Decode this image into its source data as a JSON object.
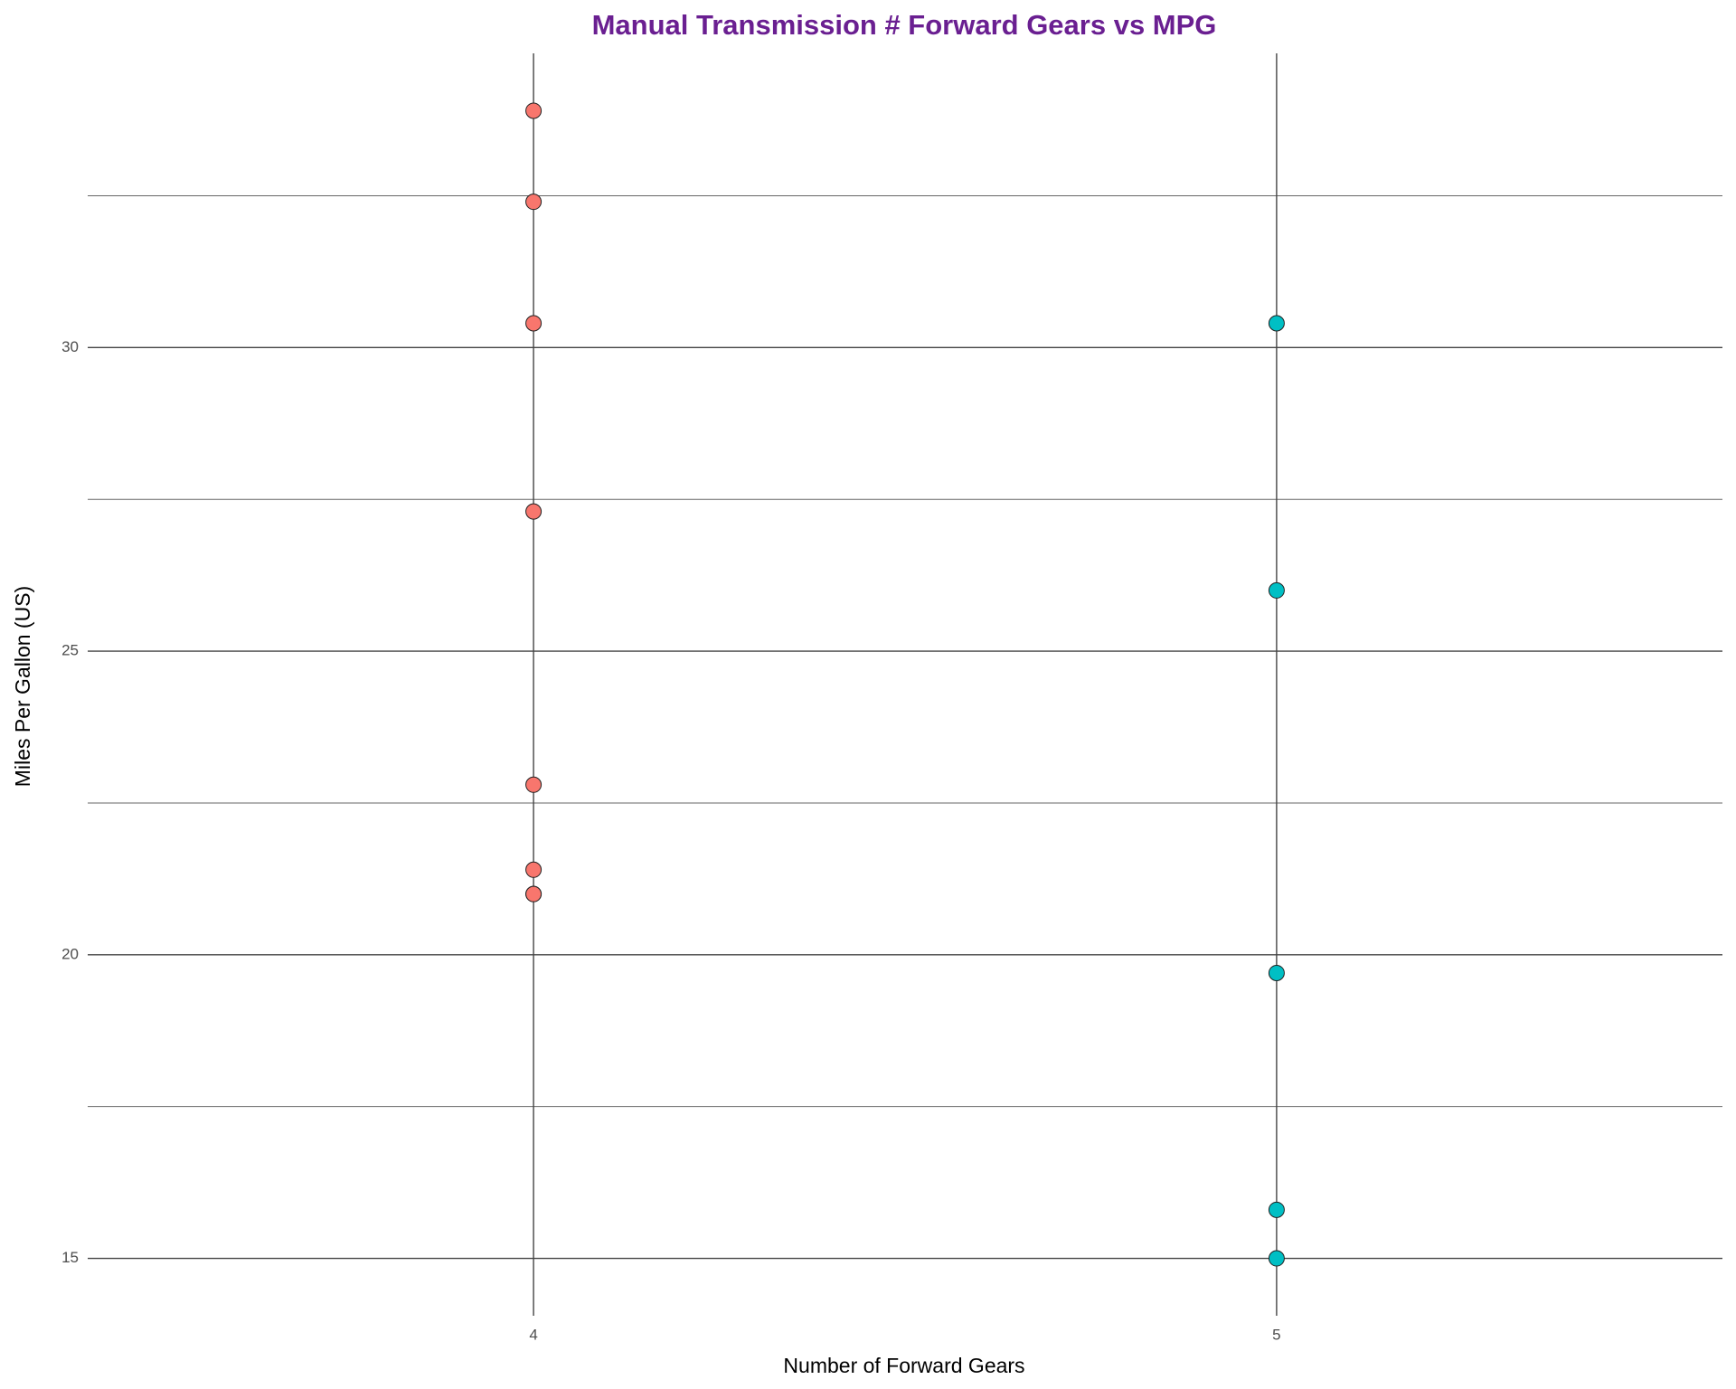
{
  "chart_data": {
    "type": "scatter",
    "title": "Manual Transmission # Forward Gears vs MPG",
    "title_color": "#6A1F91",
    "x_label": "Number of Forward Gears",
    "y_label": "Miles Per Gallon (US)",
    "xlim": [
      3.4,
      5.6
    ],
    "xticks": [
      4,
      5
    ],
    "ylim": [
      14.055,
      34.845
    ],
    "yticks": [
      15,
      20,
      25,
      30
    ],
    "yminor": [
      17.5,
      22.5,
      27.5,
      32.5
    ],
    "grid": true,
    "series": [
      {
        "color": "#F8766D",
        "x": [
          4,
          4,
          4,
          4,
          4,
          4,
          4,
          4
        ],
        "values": [
          21,
          21,
          22.8,
          32.4,
          30.4,
          33.9,
          27.3,
          21.4
        ]
      },
      {
        "color": "#00BFC4",
        "x": [
          5,
          5,
          5,
          5,
          5
        ],
        "values": [
          26,
          30.4,
          15.8,
          19.7,
          15
        ]
      }
    ]
  }
}
